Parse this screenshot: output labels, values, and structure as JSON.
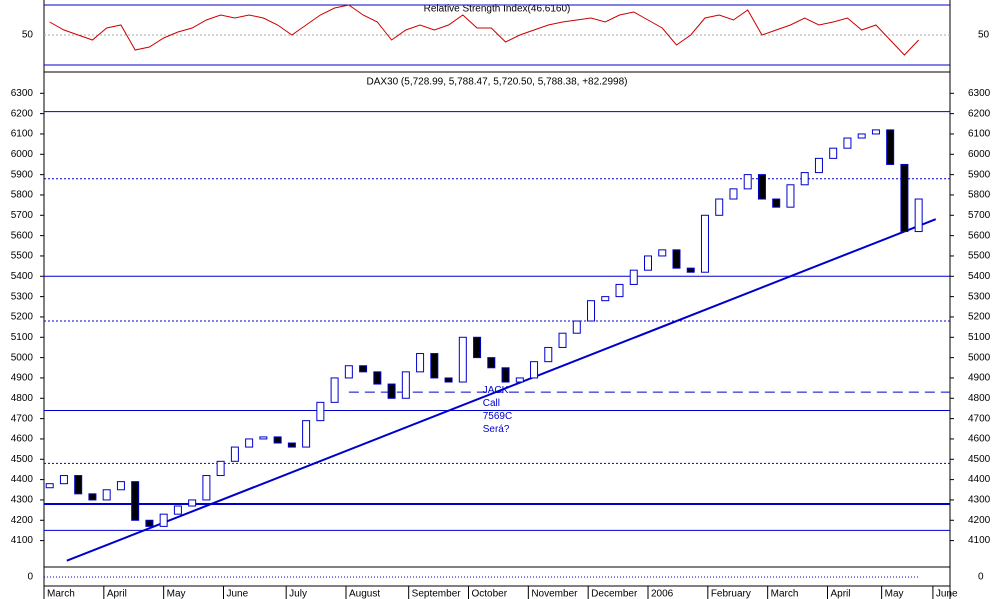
{
  "chart_data": [
    {
      "type": "line",
      "title": "Relative Strength Index(46.6160)",
      "color": "#cc0000",
      "bound_color": "#0000cc",
      "ylim": [
        15,
        85
      ],
      "yticks": [
        50
      ],
      "bounds": [
        80,
        20
      ],
      "x": [
        2,
        7,
        12,
        17,
        22,
        27,
        32,
        37,
        42,
        47,
        52,
        57,
        62,
        67,
        72,
        77,
        82,
        87,
        92,
        97,
        102,
        107,
        112,
        117,
        122,
        127,
        132,
        137,
        142,
        147,
        152,
        157,
        162,
        167,
        172,
        177,
        182,
        187,
        192,
        197,
        202,
        207,
        212,
        217,
        222,
        227,
        232,
        237,
        242,
        247,
        252,
        257,
        262,
        267,
        272,
        277,
        282,
        287,
        292,
        297,
        302,
        307
      ],
      "values": [
        63,
        55,
        50,
        45,
        57,
        60,
        35,
        38,
        47,
        53,
        57,
        65,
        70,
        67,
        70,
        67,
        60,
        50,
        60,
        70,
        77,
        80,
        70,
        63,
        45,
        55,
        60,
        55,
        60,
        70,
        57,
        57,
        43,
        50,
        55,
        60,
        63,
        65,
        67,
        63,
        70,
        73,
        65,
        57,
        40,
        50,
        67,
        70,
        65,
        75,
        50,
        55,
        60,
        67,
        60,
        63,
        67,
        55,
        60,
        45,
        30,
        45
      ]
    },
    {
      "type": "candlestick",
      "title": "DAX30 (5,728.99, 5,788.47, 5,720.50, 5,788.38, +82.2998)",
      "up_color": "#ffffff",
      "down_color": "#000000",
      "edge_color": "#0000cc",
      "line_color": "#0000cc",
      "x": [
        2,
        7,
        12,
        17,
        22,
        27,
        32,
        37,
        42,
        47,
        52,
        57,
        62,
        67,
        72,
        77,
        82,
        87,
        92,
        97,
        102,
        107,
        112,
        117,
        122,
        127,
        132,
        137,
        142,
        147,
        152,
        157,
        162,
        167,
        172,
        177,
        182,
        187,
        192,
        197,
        202,
        207,
        212,
        217,
        222,
        227,
        232,
        237,
        242,
        247,
        252,
        257,
        262,
        267,
        272,
        277,
        282,
        287,
        292,
        297,
        302,
        307
      ],
      "open": [
        4360,
        4380,
        4420,
        4330,
        4300,
        4350,
        4390,
        4200,
        4170,
        4230,
        4270,
        4300,
        4420,
        4490,
        4560,
        4600,
        4610,
        4580,
        4560,
        4690,
        4780,
        4900,
        4960,
        4930,
        4870,
        4800,
        4930,
        5020,
        4900,
        4880,
        5100,
        5000,
        4950,
        4880,
        4900,
        4980,
        5050,
        5120,
        5180,
        5280,
        5300,
        5360,
        5430,
        5500,
        5530,
        5440,
        5420,
        5700,
        5780,
        5830,
        5900,
        5780,
        5740,
        5850,
        5910,
        5980,
        6030,
        6080,
        6100,
        6120,
        5950,
        5620
      ],
      "close": [
        4380,
        4420,
        4330,
        4300,
        4350,
        4390,
        4200,
        4170,
        4230,
        4270,
        4300,
        4420,
        4490,
        4560,
        4600,
        4610,
        4580,
        4560,
        4690,
        4780,
        4900,
        4960,
        4930,
        4870,
        4800,
        4930,
        5020,
        4900,
        4880,
        5100,
        5000,
        4950,
        4880,
        4900,
        4980,
        5050,
        5120,
        5180,
        5280,
        5300,
        5360,
        5430,
        5500,
        5530,
        5440,
        5420,
        5700,
        5780,
        5830,
        5900,
        5780,
        5740,
        5850,
        5910,
        5980,
        6030,
        6080,
        6100,
        6120,
        5950,
        5620,
        5780
      ],
      "xlim": [
        0,
        318
      ],
      "xticks": [
        {
          "value": 0,
          "label": "March"
        },
        {
          "value": 21,
          "label": "April"
        },
        {
          "value": 42,
          "label": "May"
        },
        {
          "value": 63,
          "label": "June"
        },
        {
          "value": 85,
          "label": "July"
        },
        {
          "value": 106,
          "label": "August"
        },
        {
          "value": 128,
          "label": "September"
        },
        {
          "value": 149,
          "label": "October"
        },
        {
          "value": 170,
          "label": "November"
        },
        {
          "value": 191,
          "label": "December"
        },
        {
          "value": 212,
          "label": "2006"
        },
        {
          "value": 233,
          "label": "February"
        },
        {
          "value": 254,
          "label": "March"
        },
        {
          "value": 275,
          "label": "April"
        },
        {
          "value": 294,
          "label": "May"
        },
        {
          "value": 312,
          "label": "June"
        }
      ],
      "ylim": [
        3980,
        6390
      ],
      "yticks": [
        4100,
        4200,
        4300,
        4400,
        4500,
        4600,
        4700,
        4800,
        4900,
        5000,
        5100,
        5200,
        5300,
        5400,
        5500,
        5600,
        5700,
        5800,
        5900,
        6000,
        6100,
        6200,
        6300
      ],
      "levels": [
        {
          "value": 6210,
          "style": "solid"
        },
        {
          "value": 5880,
          "style": "dotted"
        },
        {
          "value": 5400,
          "style": "solid"
        },
        {
          "value": 5180,
          "style": "dotted"
        },
        {
          "value": 4740,
          "style": "solid"
        },
        {
          "value": 4480,
          "style": "dotted"
        },
        {
          "value": 4280,
          "style": "thick"
        },
        {
          "value": 4150,
          "style": "solid"
        }
      ],
      "dashed_level": {
        "value": 4830,
        "x": [
          107,
          318
        ]
      },
      "trendline": {
        "x": [
          8,
          313
        ],
        "values": [
          4001,
          5681
        ]
      },
      "annotation": {
        "lines": [
          "JACK",
          "Call",
          "7569C",
          "Será?"
        ],
        "x": 154,
        "y": 4840
      }
    },
    {
      "type": "volume",
      "ylim": [
        -1,
        1
      ],
      "yticks": [
        0
      ]
    }
  ]
}
